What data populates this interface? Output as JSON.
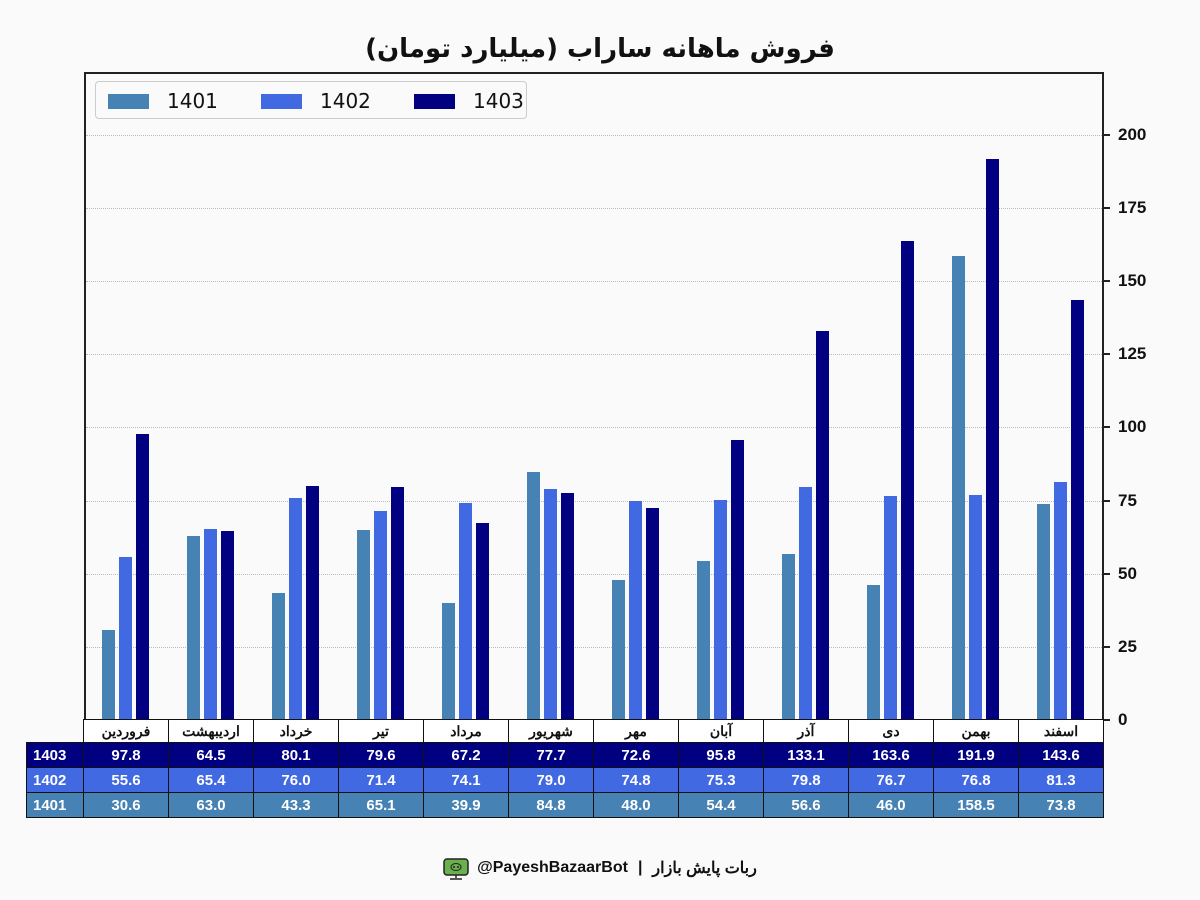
{
  "title": "فروش ماهانه ساراب (میلیارد تومان)",
  "legend": [
    {
      "label": "1401",
      "color": "#4682b4"
    },
    {
      "label": "1402",
      "color": "#4169e1"
    },
    {
      "label": "1403",
      "color": "#000080"
    }
  ],
  "y_axis": {
    "ticks": [
      "0",
      "25",
      "50",
      "75",
      "100",
      "125",
      "150",
      "175",
      "200"
    ]
  },
  "table": {
    "months": [
      "فروردین",
      "اردیبهشت",
      "خرداد",
      "تیر",
      "مرداد",
      "شهریور",
      "مهر",
      "آبان",
      "آذر",
      "دی",
      "بهمن",
      "اسفند"
    ],
    "rows": [
      {
        "label": "1403",
        "values": [
          "97.8",
          "64.5",
          "80.1",
          "79.6",
          "67.2",
          "77.7",
          "72.6",
          "95.8",
          "133.1",
          "163.6",
          "191.9",
          "143.6"
        ]
      },
      {
        "label": "1402",
        "values": [
          "55.6",
          "65.4",
          "76.0",
          "71.4",
          "74.1",
          "79.0",
          "74.8",
          "75.3",
          "79.8",
          "76.7",
          "76.8",
          "81.3"
        ]
      },
      {
        "label": "1401",
        "values": [
          "30.6",
          "63.0",
          "43.3",
          "65.1",
          "39.9",
          "84.8",
          "48.0",
          "54.4",
          "56.6",
          "46.0",
          "158.5",
          "73.8"
        ]
      }
    ]
  },
  "footer": {
    "handle": "@PayeshBazaarBot",
    "separator": "|",
    "bot_name": "ربات پایش بازار",
    "icon": "monitor-robot-icon"
  },
  "chart_data": {
    "type": "bar",
    "title": "فروش ماهانه ساراب (میلیارد تومان)",
    "xlabel": "",
    "ylabel": "",
    "categories": [
      "فروردین",
      "اردیبهشت",
      "خرداد",
      "تیر",
      "مرداد",
      "شهریور",
      "مهر",
      "آبان",
      "آذر",
      "دی",
      "بهمن",
      "اسفند"
    ],
    "series": [
      {
        "name": "1401",
        "color": "#4682b4",
        "values": [
          30.6,
          63.0,
          43.3,
          65.1,
          39.9,
          84.8,
          48.0,
          54.4,
          56.6,
          46.0,
          158.5,
          73.8
        ]
      },
      {
        "name": "1402",
        "color": "#4169e1",
        "values": [
          55.6,
          65.4,
          76.0,
          71.4,
          74.1,
          79.0,
          74.8,
          75.3,
          79.8,
          76.7,
          76.8,
          81.3
        ]
      },
      {
        "name": "1403",
        "color": "#000080",
        "values": [
          97.8,
          64.5,
          80.1,
          79.6,
          67.2,
          77.7,
          72.6,
          95.8,
          133.1,
          163.6,
          191.9,
          143.6
        ]
      }
    ],
    "ylim": [
      0,
      221.5
    ],
    "yticks": [
      0,
      25,
      50,
      75,
      100,
      125,
      150,
      175,
      200
    ],
    "y_axis_position": "right",
    "grid": "horizontal dotted",
    "legend_position": "upper left",
    "data_table": true
  }
}
